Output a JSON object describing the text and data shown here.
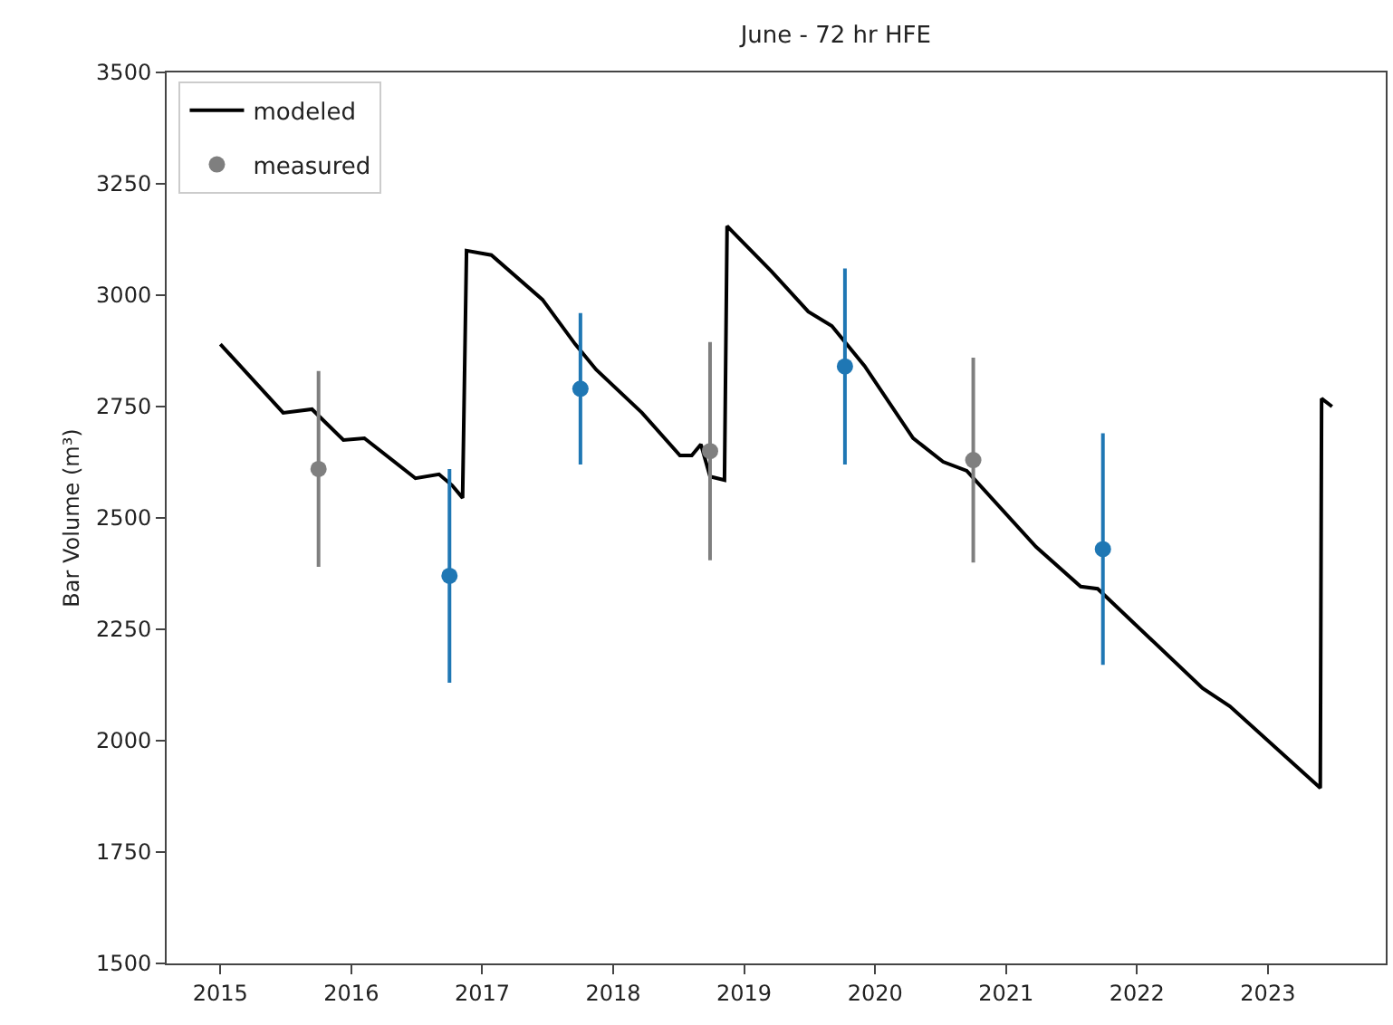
{
  "chart_data": {
    "type": "line",
    "title": "June - 72 hr HFE",
    "ylabel": "Bar Volume (m³)",
    "xlim": [
      2014.59,
      2023.9
    ],
    "xticks": [
      2015,
      2016,
      2017,
      2018,
      2019,
      2020,
      2021,
      2022,
      2023
    ],
    "ylim": [
      1500,
      3500
    ],
    "yticks": [
      1500,
      1750,
      2000,
      2250,
      2500,
      2750,
      3000,
      3250,
      3500
    ],
    "legend": "top left",
    "series": [
      {
        "name": "modeled",
        "color": "#000000",
        "marker": "none",
        "line_style": "solid",
        "x": [
          2015.0,
          2015.48,
          2015.7,
          2015.94,
          2016.1,
          2016.49,
          2016.67,
          2016.77,
          2016.85,
          2016.88,
          2017.07,
          2017.46,
          2017.71,
          2017.87,
          2018.22,
          2018.51,
          2018.6,
          2018.67,
          2018.74,
          2018.85,
          2018.87,
          2019.21,
          2019.49,
          2019.67,
          2019.92,
          2020.29,
          2020.52,
          2020.7,
          2021.23,
          2021.57,
          2021.7,
          2022.5,
          2022.71,
          2023.4,
          2023.41,
          2023.49
        ],
        "values": [
          2890,
          2736,
          2744,
          2675,
          2679,
          2589,
          2598,
          2573,
          2545,
          3100,
          3090,
          2990,
          2890,
          2833,
          2736,
          2640,
          2640,
          2665,
          2593,
          2585,
          3155,
          3053,
          2963,
          2931,
          2841,
          2679,
          2626,
          2606,
          2435,
          2346,
          2341,
          2118,
          2077,
          1894,
          2768,
          2750
        ]
      },
      {
        "name": "measured",
        "type": "scatter",
        "marker": "circle",
        "x": [
          2015.75,
          2016.75,
          2017.75,
          2018.74,
          2019.77,
          2020.75,
          2021.74
        ],
        "values": [
          2610,
          2370,
          2790,
          2650,
          2840,
          2630,
          2430
        ],
        "errors": [
          220,
          240,
          170,
          245,
          220,
          230,
          260
        ],
        "colors": [
          "#7f7f7f",
          "#1f77b4",
          "#1f77b4",
          "#7f7f7f",
          "#1f77b4",
          "#7f7f7f",
          "#1f77b4"
        ]
      }
    ]
  }
}
